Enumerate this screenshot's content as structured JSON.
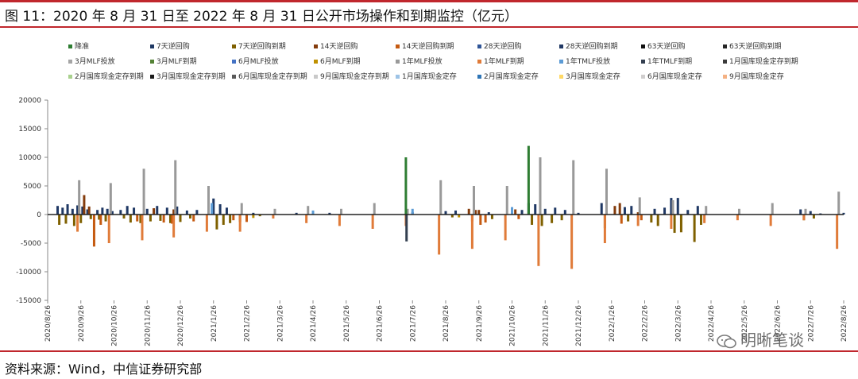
{
  "header": {
    "title": "图 11：2020 年 8 月 31 日至 2022 年 8 月 31 日公开市场操作和到期监控（亿元）"
  },
  "footer": {
    "source": "资料来源：Wind，中信证券研究部",
    "watermark": "明晰笔谈"
  },
  "colors": {
    "accent_red": "#c0272d",
    "zero_line": "#222222",
    "axis": "#888888"
  },
  "chart_data": {
    "type": "bar",
    "title": "",
    "xlabel": "",
    "ylabel": "",
    "ylim": [
      -15000,
      20000
    ],
    "y_ticks": [
      "20000",
      "15000",
      "10000",
      "5000",
      "0",
      "-5000",
      "-10000",
      "-15000"
    ],
    "y_tick_values": [
      20000,
      15000,
      10000,
      5000,
      0,
      -5000,
      -10000,
      -15000
    ],
    "x_ticks": [
      "2020/8/26",
      "2020/9/26",
      "2020/10/26",
      "2020/11/26",
      "2020/12/26",
      "2021/1/26",
      "2021/2/26",
      "2021/3/26",
      "2021/4/26",
      "2021/5/26",
      "2021/6/26",
      "2021/7/26",
      "2021/8/26",
      "2021/9/26",
      "2021/10/26",
      "2021/11/26",
      "2021/12/26",
      "2022/1/26",
      "2022/2/26",
      "2022/3/26",
      "2022/4/26",
      "2022/5/26",
      "2022/6/26",
      "2022/7/26",
      "2022/8/26"
    ],
    "legend": [
      {
        "name": "降准",
        "color": "#2e7d32"
      },
      {
        "name": "7天逆回购",
        "color": "#1f3864"
      },
      {
        "name": "7天逆回购到期",
        "color": "#7f6000"
      },
      {
        "name": "14天逆回购",
        "color": "#843c0c"
      },
      {
        "name": "14天逆回购到期",
        "color": "#c55a11"
      },
      {
        "name": "28天逆回购",
        "color": "#2f5597"
      },
      {
        "name": "28天逆回购到期",
        "color": "#203864"
      },
      {
        "name": "63天逆回购",
        "color": "#111111"
      },
      {
        "name": "63天逆回购到期",
        "color": "#262626"
      },
      {
        "name": "3月MLF投放",
        "color": "#a5a5a5"
      },
      {
        "name": "3月MLF到期",
        "color": "#548235"
      },
      {
        "name": "6月MLF投放",
        "color": "#4472c4"
      },
      {
        "name": "6月MLF到期",
        "color": "#bf9000"
      },
      {
        "name": "1年MLF投放",
        "color": "#999999"
      },
      {
        "name": "1年MLF到期",
        "color": "#e07b39"
      },
      {
        "name": "1年TMLF投放",
        "color": "#5b9bd5"
      },
      {
        "name": "1年TMLF到期",
        "color": "#333f50"
      },
      {
        "name": "1月国库现金定存到期",
        "color": "#3a3a3a"
      },
      {
        "name": "2月国库现金定存到期",
        "color": "#a9d18e"
      },
      {
        "name": "3月国库现金定存到期",
        "color": "#1a1a1a"
      },
      {
        "name": "6月国库现金定存到期",
        "color": "#595959"
      },
      {
        "name": "9月国库现金定存到期",
        "color": "#c9c9c9"
      },
      {
        "name": "1月国库现金定存",
        "color": "#9dc3e6"
      },
      {
        "name": "2月国库现金定存",
        "color": "#2e75b6"
      },
      {
        "name": "3月国库现金定存",
        "color": "#ffd966"
      },
      {
        "name": "6月国库现金定存",
        "color": "#d0cece"
      },
      {
        "name": "9月国库现金定存",
        "color": "#f4b183"
      }
    ],
    "series": [
      {
        "name": "7天逆回购",
        "color": "#1f3864",
        "points": [
          [
            0.3,
            1500
          ],
          [
            0.45,
            1200
          ],
          [
            0.6,
            1800
          ],
          [
            0.75,
            1000
          ],
          [
            0.9,
            1600
          ],
          [
            1.05,
            1400
          ],
          [
            1.2,
            900
          ],
          [
            1.5,
            800
          ],
          [
            1.65,
            1200
          ],
          [
            1.8,
            1000
          ],
          [
            1.95,
            600
          ],
          [
            2.2,
            800
          ],
          [
            2.4,
            1500
          ],
          [
            2.6,
            1200
          ],
          [
            3.0,
            1000
          ],
          [
            3.3,
            1500
          ],
          [
            3.6,
            1200
          ],
          [
            3.9,
            1400
          ],
          [
            4.2,
            700
          ],
          [
            4.5,
            800
          ],
          [
            5.0,
            2800
          ],
          [
            5.2,
            1800
          ],
          [
            5.4,
            1200
          ],
          [
            6.2,
            300
          ],
          [
            7.5,
            300
          ],
          [
            8.5,
            300
          ],
          [
            11.0,
            400
          ],
          [
            12.0,
            600
          ],
          [
            12.3,
            700
          ],
          [
            13.3,
            400
          ],
          [
            14.3,
            800
          ],
          [
            14.5,
            2000
          ],
          [
            14.7,
            1800
          ],
          [
            15.0,
            1000
          ],
          [
            15.3,
            1200
          ],
          [
            15.6,
            800
          ],
          [
            16.0,
            300
          ],
          [
            16.7,
            2000
          ],
          [
            17.4,
            1300
          ],
          [
            17.6,
            1500
          ],
          [
            18.3,
            1000
          ],
          [
            18.6,
            1200
          ],
          [
            18.8,
            2900
          ],
          [
            19.0,
            2900
          ],
          [
            19.3,
            800
          ],
          [
            19.6,
            1500
          ],
          [
            22.7,
            900
          ],
          [
            23.0,
            600
          ],
          [
            23.3,
            200
          ],
          [
            24.0,
            300
          ]
        ]
      },
      {
        "name": "7天逆回购到期",
        "color": "#7f6000",
        "points": [
          [
            0.35,
            -1800
          ],
          [
            0.55,
            -1600
          ],
          [
            0.8,
            -2000
          ],
          [
            1.0,
            -1500
          ],
          [
            1.3,
            -800
          ],
          [
            1.55,
            -900
          ],
          [
            1.75,
            -1200
          ],
          [
            2.3,
            -700
          ],
          [
            2.5,
            -1400
          ],
          [
            2.8,
            -1500
          ],
          [
            3.1,
            -1200
          ],
          [
            3.4,
            -1100
          ],
          [
            3.7,
            -1500
          ],
          [
            4.0,
            -1300
          ],
          [
            4.3,
            -700
          ],
          [
            5.1,
            -2600
          ],
          [
            5.3,
            -1800
          ],
          [
            5.5,
            -1500
          ],
          [
            5.8,
            -1300
          ],
          [
            6.4,
            -300
          ],
          [
            12.2,
            -500
          ],
          [
            13.4,
            -800
          ],
          [
            14.6,
            -1800
          ],
          [
            14.9,
            -2000
          ],
          [
            15.2,
            -1500
          ],
          [
            15.5,
            -1000
          ],
          [
            16.8,
            -2400
          ],
          [
            17.5,
            -1200
          ],
          [
            18.2,
            -1400
          ],
          [
            18.4,
            -2000
          ],
          [
            18.9,
            -3200
          ],
          [
            19.1,
            -3100
          ],
          [
            19.5,
            -4800
          ],
          [
            19.7,
            -1800
          ],
          [
            22.8,
            -1000
          ],
          [
            23.1,
            -700
          ]
        ]
      },
      {
        "name": "14天逆回购",
        "color": "#843c0c",
        "points": [
          [
            0.95,
            800
          ],
          [
            1.1,
            3400
          ],
          [
            1.25,
            1400
          ],
          [
            3.2,
            1100
          ],
          [
            3.8,
            900
          ],
          [
            12.7,
            1000
          ],
          [
            12.9,
            800
          ],
          [
            13.0,
            800
          ],
          [
            14.1,
            900
          ],
          [
            17.1,
            1500
          ],
          [
            17.25,
            2000
          ],
          [
            17.8,
            400
          ]
        ]
      },
      {
        "name": "14天逆回购到期",
        "color": "#c55a11",
        "points": [
          [
            1.4,
            -5600
          ],
          [
            1.6,
            -1800
          ],
          [
            2.7,
            -1200
          ],
          [
            3.5,
            -1400
          ],
          [
            3.75,
            -1600
          ],
          [
            4.4,
            -1200
          ],
          [
            5.6,
            -1000
          ],
          [
            6.0,
            -1300
          ],
          [
            12.8,
            -1200
          ],
          [
            13.05,
            -1800
          ],
          [
            13.2,
            -1400
          ],
          [
            14.2,
            -800
          ],
          [
            17.3,
            -1600
          ],
          [
            17.9,
            -1000
          ]
        ]
      },
      {
        "name": "1年MLF投放",
        "color": "#999999",
        "points": [
          [
            0.95,
            6000
          ],
          [
            1.9,
            5500
          ],
          [
            2.9,
            8000
          ],
          [
            3.85,
            9500
          ],
          [
            4.85,
            5000
          ],
          [
            5.85,
            2000
          ],
          [
            6.85,
            1000
          ],
          [
            7.85,
            1500
          ],
          [
            8.85,
            1000
          ],
          [
            9.85,
            2000
          ],
          [
            10.85,
            1000
          ],
          [
            11.85,
            6000
          ],
          [
            12.85,
            5000
          ],
          [
            13.85,
            5000
          ],
          [
            14.85,
            10000
          ],
          [
            15.85,
            9500
          ],
          [
            16.85,
            8000
          ],
          [
            17.85,
            3000
          ],
          [
            18.85,
            2500
          ],
          [
            19.85,
            1500
          ],
          [
            20.85,
            1000
          ],
          [
            21.85,
            2000
          ],
          [
            22.85,
            1000
          ],
          [
            23.85,
            4000
          ]
        ]
      },
      {
        "name": "1年MLF到期",
        "color": "#e07b39",
        "points": [
          [
            0.9,
            -3000
          ],
          [
            1.85,
            -5000
          ],
          [
            2.85,
            -4500
          ],
          [
            3.8,
            -4000
          ],
          [
            4.8,
            -3000
          ],
          [
            5.8,
            -3000
          ],
          [
            6.8,
            -700
          ],
          [
            7.8,
            -1500
          ],
          [
            8.8,
            -2000
          ],
          [
            9.8,
            -2500
          ],
          [
            10.8,
            -2000
          ],
          [
            11.8,
            -7000
          ],
          [
            12.8,
            -6000
          ],
          [
            13.8,
            -4500
          ],
          [
            14.8,
            -9000
          ],
          [
            15.8,
            -9500
          ],
          [
            16.8,
            -5000
          ],
          [
            17.8,
            -2000
          ],
          [
            18.8,
            -2500
          ],
          [
            19.8,
            -1500
          ],
          [
            20.8,
            -1000
          ],
          [
            21.8,
            -2000
          ],
          [
            22.8,
            -1000
          ],
          [
            23.8,
            -6000
          ]
        ]
      },
      {
        "name": "降准",
        "color": "#2e7d32",
        "points": [
          [
            10.8,
            10000
          ],
          [
            14.5,
            12000
          ]
        ]
      },
      {
        "name": "1年TMLF投放",
        "color": "#5b9bd5",
        "points": [
          [
            4.95,
            2000
          ],
          [
            8.0,
            700
          ],
          [
            11.0,
            1000
          ],
          [
            14.0,
            1300
          ]
        ]
      },
      {
        "name": "1年TMLF到期",
        "color": "#333f50",
        "points": [
          [
            10.82,
            -4700
          ]
        ]
      },
      {
        "name": "6月MLF到期",
        "color": "#bf9000",
        "points": [
          [
            6.2,
            -600
          ],
          [
            12.4,
            -500
          ]
        ]
      }
    ]
  }
}
